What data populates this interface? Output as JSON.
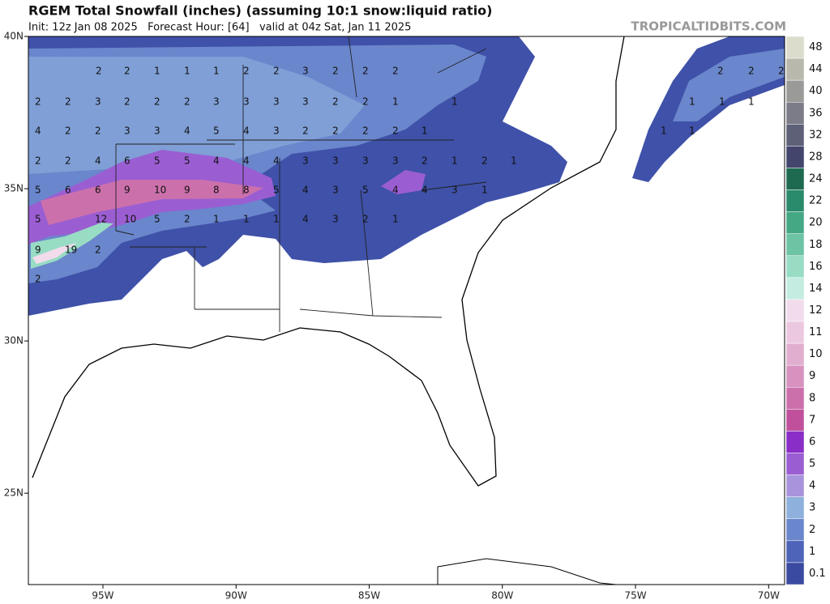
{
  "header": {
    "title": "RGEM Total Snowfall (inches) (assuming 10:1 snow:liquid ratio)",
    "subtitle": "Init: 12z Jan 08 2025   Forecast Hour: [64]   valid at 04z Sat, Jan 11 2025",
    "watermark": "TROPICALTIDBITS.COM"
  },
  "map": {
    "xlim": [
      -97.8,
      -69.4
    ],
    "ylim": [
      22,
      40
    ],
    "lon_ticks": [
      {
        "value": -95,
        "label": "95W"
      },
      {
        "value": -90,
        "label": "90W"
      },
      {
        "value": -85,
        "label": "85W"
      },
      {
        "value": -80,
        "label": "80W"
      },
      {
        "value": -75,
        "label": "75W"
      },
      {
        "value": -70,
        "label": "70W"
      }
    ],
    "lat_ticks": [
      {
        "value": 40,
        "label": "40N"
      },
      {
        "value": 35,
        "label": "35N"
      },
      {
        "value": 30,
        "label": "30N"
      },
      {
        "value": 25,
        "label": "25N"
      }
    ],
    "map_labels": [
      [
        2,
        2,
        1,
        1,
        1,
        2,
        2,
        3,
        2,
        2,
        2,
        2,
        2,
        2
      ],
      [
        2,
        2,
        3,
        2,
        2,
        2,
        3,
        3,
        3,
        3,
        2,
        2,
        1,
        1,
        1,
        1,
        1
      ],
      [
        4,
        2,
        2,
        3,
        3,
        4,
        5,
        4,
        3,
        2,
        2,
        2,
        2,
        1,
        1,
        1
      ],
      [
        2,
        2,
        4,
        6,
        5,
        5,
        4,
        4,
        4,
        3,
        3,
        3,
        3,
        2,
        1,
        2,
        1
      ],
      [
        5,
        6,
        6,
        9,
        10,
        9,
        8,
        8,
        5,
        4,
        3,
        5,
        4,
        4,
        3,
        1
      ],
      [
        5,
        12,
        10,
        5,
        2,
        1,
        1,
        1,
        4,
        3,
        2,
        1
      ],
      [
        9,
        19,
        2
      ],
      [
        2
      ]
    ]
  },
  "colorbar": {
    "levels": [
      48,
      44,
      40,
      36,
      32,
      28,
      24,
      22,
      20,
      18,
      16,
      14,
      12,
      11,
      10,
      9,
      8,
      7,
      6,
      5,
      4,
      3,
      2,
      1,
      0.1
    ],
    "colors": [
      "#dcdccc",
      "#b8b8ac",
      "#9a9a98",
      "#7c7c88",
      "#5e6078",
      "#43456c",
      "#1e6a50",
      "#2a8a6c",
      "#44a884",
      "#6cc4a4",
      "#98dcc4",
      "#c4ece0",
      "#f2dcec",
      "#ecc8e0",
      "#e2aed0",
      "#d892c0",
      "#cc70ac",
      "#c0509c",
      "#8a2ec8",
      "#9a5ed2",
      "#a894dc",
      "#8eb0dc",
      "#6a86cc",
      "#4e64b8",
      "#3a4aa0"
    ]
  }
}
